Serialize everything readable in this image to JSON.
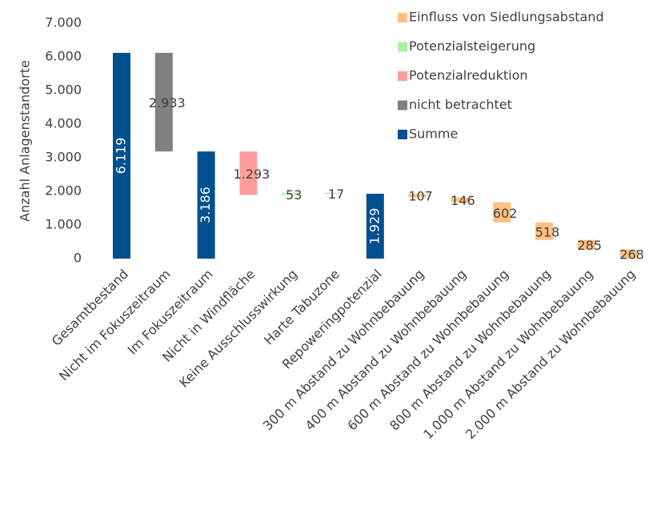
{
  "chart_data": {
    "type": "waterfall",
    "ylabel": "Anzahl Anlagenstandorte",
    "categories": [
      "Gesamtbestand",
      "Nicht im Fokuszeitraum",
      "Im Fokuszeitraum",
      "Nicht in Windfläche",
      "Keine Ausschlusswirkung",
      "Harte Tabuzone",
      "Repoweringpotenzial",
      "300 m Abstand zu Wohnbebauung",
      "400 m Abstand zu Wohnbebauung",
      "600 m Abstand zu Wohnbebauung",
      "800 m Abstand zu Wohnbebauung",
      "1.000 m Abstand zu Wohnbebauung",
      "2.000 m Abstand zu Wohnbebauung"
    ],
    "values": [
      6119,
      2933,
      3186,
      1293,
      53,
      17,
      1929,
      107,
      146,
      602,
      518,
      285,
      268
    ],
    "value_labels": [
      "6.119",
      "2.933",
      "3.186",
      "1.293",
      "53",
      "17",
      "1.929",
      "107",
      "146",
      "602",
      "518",
      "285",
      "268"
    ],
    "category_series": [
      4,
      3,
      4,
      2,
      1,
      2,
      4,
      0,
      0,
      0,
      0,
      0,
      0
    ],
    "series": [
      {
        "name": "Einfluss von Siedlungsabstand",
        "color": "#ffc183",
        "kind": "decrease"
      },
      {
        "name": "Potenzialsteigerung",
        "color": "#a9f2a4",
        "kind": "increase"
      },
      {
        "name": "Potenzialreduktion",
        "color": "#ff9c9c",
        "kind": "decrease"
      },
      {
        "name": "nicht betrachtet",
        "color": "#808080",
        "kind": "decrease"
      },
      {
        "name": "Summe",
        "color": "#00508f",
        "kind": "total"
      }
    ],
    "ylim": [
      0,
      7000
    ],
    "yticks": [
      0,
      {
        "value": 1000,
        "label": "1.000"
      },
      {
        "value": 2000,
        "label": "2.000"
      },
      {
        "value": 3000,
        "label": "3.000"
      },
      {
        "value": 4000,
        "label": "4.000"
      },
      {
        "value": 5000,
        "label": "5.000"
      },
      {
        "value": 6000,
        "label": "6.000"
      },
      {
        "value": 7000,
        "label": "7.000"
      }
    ],
    "grid": false,
    "legend": "upper right"
  }
}
